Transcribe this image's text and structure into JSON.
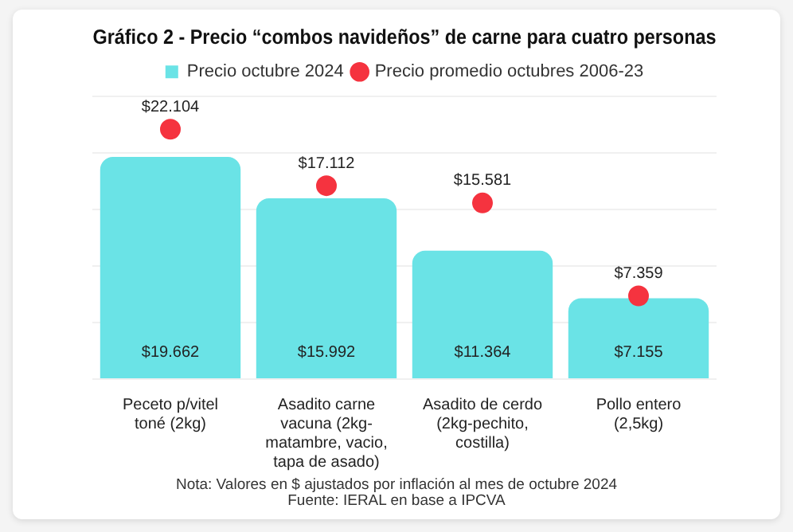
{
  "chart_data": {
    "type": "bar",
    "title": "Gráfico 2 - Precio “combos navideños” de carne para cuatro personas",
    "categories": [
      "Peceto p/vitel toné (2kg)",
      "Asadito carne vacuna (2kg-matambre, vacio, tapa de asado)",
      "Asadito de cerdo (2kg-pechito, costilla)",
      "Pollo entero (2,5kg)"
    ],
    "series": [
      {
        "name": "Precio octubre 2024",
        "color": "#6ae3e6",
        "values": [
          19662,
          15992,
          11364,
          7155
        ],
        "value_labels": [
          "$19.662",
          "$15.992",
          "$11.364",
          "$7.155"
        ]
      },
      {
        "name": "Precio promedio octubres 2006-23",
        "type": "scatter",
        "color": "#f5333f",
        "values": [
          22104,
          17112,
          15581,
          7359
        ],
        "value_labels": [
          "$22.104",
          "$17.112",
          "$15.581",
          "$7.359"
        ]
      }
    ],
    "ylim": [
      0,
      25000
    ],
    "yticks": [
      {
        "value": 0,
        "label": null
      },
      {
        "value": 5000,
        "label": null
      },
      {
        "value": 10000,
        "label": null
      },
      {
        "value": 15000,
        "label": null
      },
      {
        "value": 20000,
        "label": null
      },
      {
        "value": 25000,
        "label": null
      }
    ],
    "grid": "y",
    "tick_labels": "x",
    "legend": "top",
    "marker": "circle",
    "annotations": [
      "Nota: Valores en $ ajustados por inflación al mes de octubre 2024",
      "Fuente: IERAL en base a IPCVA"
    ]
  }
}
